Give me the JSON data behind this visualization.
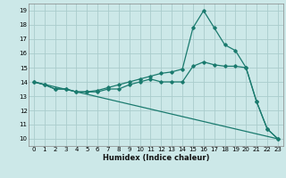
{
  "title": "",
  "xlabel": "Humidex (Indice chaleur)",
  "bg_color": "#cce8e8",
  "grid_color": "#aacccc",
  "line_color": "#1a7a6e",
  "xlim": [
    -0.5,
    23.5
  ],
  "ylim": [
    9.5,
    19.5
  ],
  "xticks": [
    0,
    1,
    2,
    3,
    4,
    5,
    6,
    7,
    8,
    9,
    10,
    11,
    12,
    13,
    14,
    15,
    16,
    17,
    18,
    19,
    20,
    21,
    22,
    23
  ],
  "yticks": [
    10,
    11,
    12,
    13,
    14,
    15,
    16,
    17,
    18,
    19
  ],
  "line1_x": [
    0,
    1,
    2,
    3,
    4,
    5,
    6,
    7,
    8,
    9,
    10,
    11,
    12,
    13,
    14,
    15,
    16,
    17,
    18,
    19,
    20,
    21,
    22,
    23
  ],
  "line1_y": [
    14.0,
    13.8,
    13.5,
    13.5,
    13.3,
    13.3,
    13.3,
    13.5,
    13.5,
    13.8,
    14.0,
    14.2,
    14.0,
    14.0,
    14.0,
    15.1,
    15.4,
    15.2,
    15.1,
    15.1,
    15.0,
    12.6,
    10.7,
    10.0
  ],
  "line2_x": [
    0,
    1,
    2,
    3,
    4,
    5,
    6,
    7,
    8,
    9,
    10,
    11,
    12,
    13,
    14,
    15,
    16,
    17,
    18,
    19,
    20,
    21,
    22,
    23
  ],
  "line2_y": [
    14.0,
    13.8,
    13.5,
    13.5,
    13.3,
    13.3,
    13.4,
    13.6,
    13.8,
    14.0,
    14.2,
    14.4,
    14.6,
    14.7,
    14.9,
    17.8,
    19.0,
    17.8,
    16.6,
    16.2,
    15.0,
    12.6,
    10.7,
    10.0
  ],
  "line3_x": [
    0,
    23
  ],
  "line3_y": [
    14.0,
    10.0
  ],
  "tick_fontsize": 5.0,
  "xlabel_fontsize": 6.0
}
